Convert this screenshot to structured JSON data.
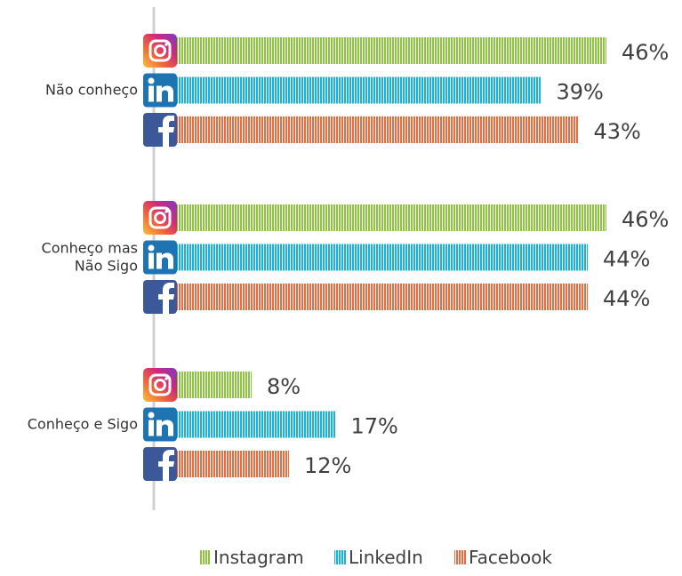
{
  "chart_data": {
    "type": "bar",
    "orientation": "horizontal",
    "categories": [
      "Não conheço",
      "Conheço mas Não Sigo",
      "Conheço e Sigo"
    ],
    "category_lines": [
      [
        "Não conheço"
      ],
      [
        "Conheço mas",
        "Não Sigo"
      ],
      [
        "Conheço e Sigo"
      ]
    ],
    "series": [
      {
        "name": "Instagram",
        "values": [
          46,
          46,
          8
        ],
        "labels": [
          "46%",
          "46%",
          "8%"
        ],
        "color": "#8cc63f",
        "icon": "instagram-icon"
      },
      {
        "name": "LinkedIn",
        "values": [
          39,
          44,
          17
        ],
        "labels": [
          "39%",
          "44%",
          "17%"
        ],
        "color": "#12b4e4",
        "icon": "linkedin-icon"
      },
      {
        "name": "Facebook",
        "values": [
          43,
          44,
          12
        ],
        "labels": [
          "43%",
          "44%",
          "12%"
        ],
        "color": "#ef6a3c",
        "icon": "facebook-icon"
      }
    ],
    "value_format": "percent",
    "legend_position": "bottom",
    "grid": false,
    "bar_style": "vertical-stripes"
  }
}
